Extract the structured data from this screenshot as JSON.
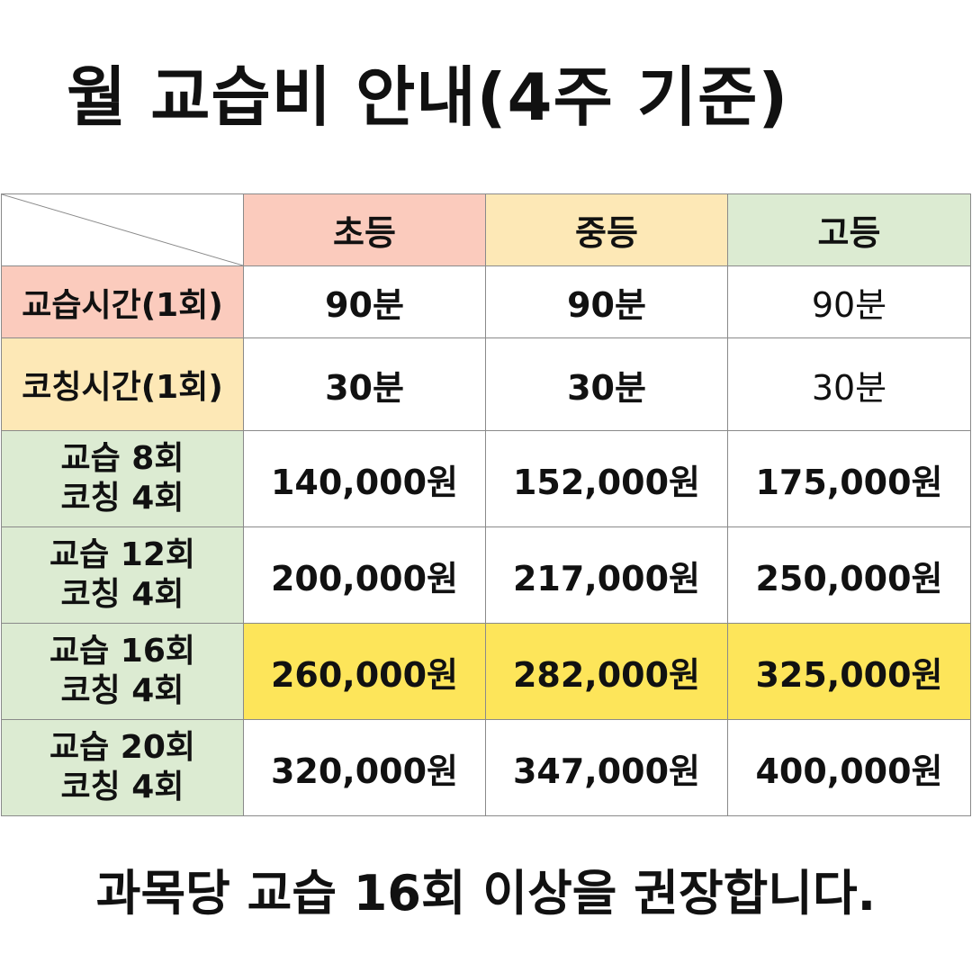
{
  "title": "월 교습비 안내(4주 기준)",
  "table": {
    "columns": [
      "초등",
      "중등",
      "고등"
    ],
    "rows": [
      {
        "label": [
          "교습시간(1회)"
        ],
        "values": [
          "90분",
          "90분",
          "90분"
        ]
      },
      {
        "label": [
          "코칭시간(1회)"
        ],
        "values": [
          "30분",
          "30분",
          "30분"
        ]
      },
      {
        "label": [
          "교습 8회",
          "코칭 4회"
        ],
        "values": [
          "140,000원",
          "152,000원",
          "175,000원"
        ]
      },
      {
        "label": [
          "교습 12회",
          "코칭 4회"
        ],
        "values": [
          "200,000원",
          "217,000원",
          "250,000원"
        ]
      },
      {
        "label": [
          "교습 16회",
          "코칭 4회"
        ],
        "values": [
          "260,000원",
          "282,000원",
          "325,000원"
        ],
        "highlighted": true
      },
      {
        "label": [
          "교습 20회",
          "코칭 4회"
        ],
        "values": [
          "320,000원",
          "347,000원",
          "400,000원"
        ]
      }
    ]
  },
  "footer": "과목당 교습 16회 이상을 권장합니다.",
  "colors": {
    "elementary_header": "#fbcbbd",
    "middle_header": "#fde8b6",
    "high_header": "#dcebd2",
    "highlight_row": "#fde55a",
    "grid_line": "#8a8a8a"
  }
}
